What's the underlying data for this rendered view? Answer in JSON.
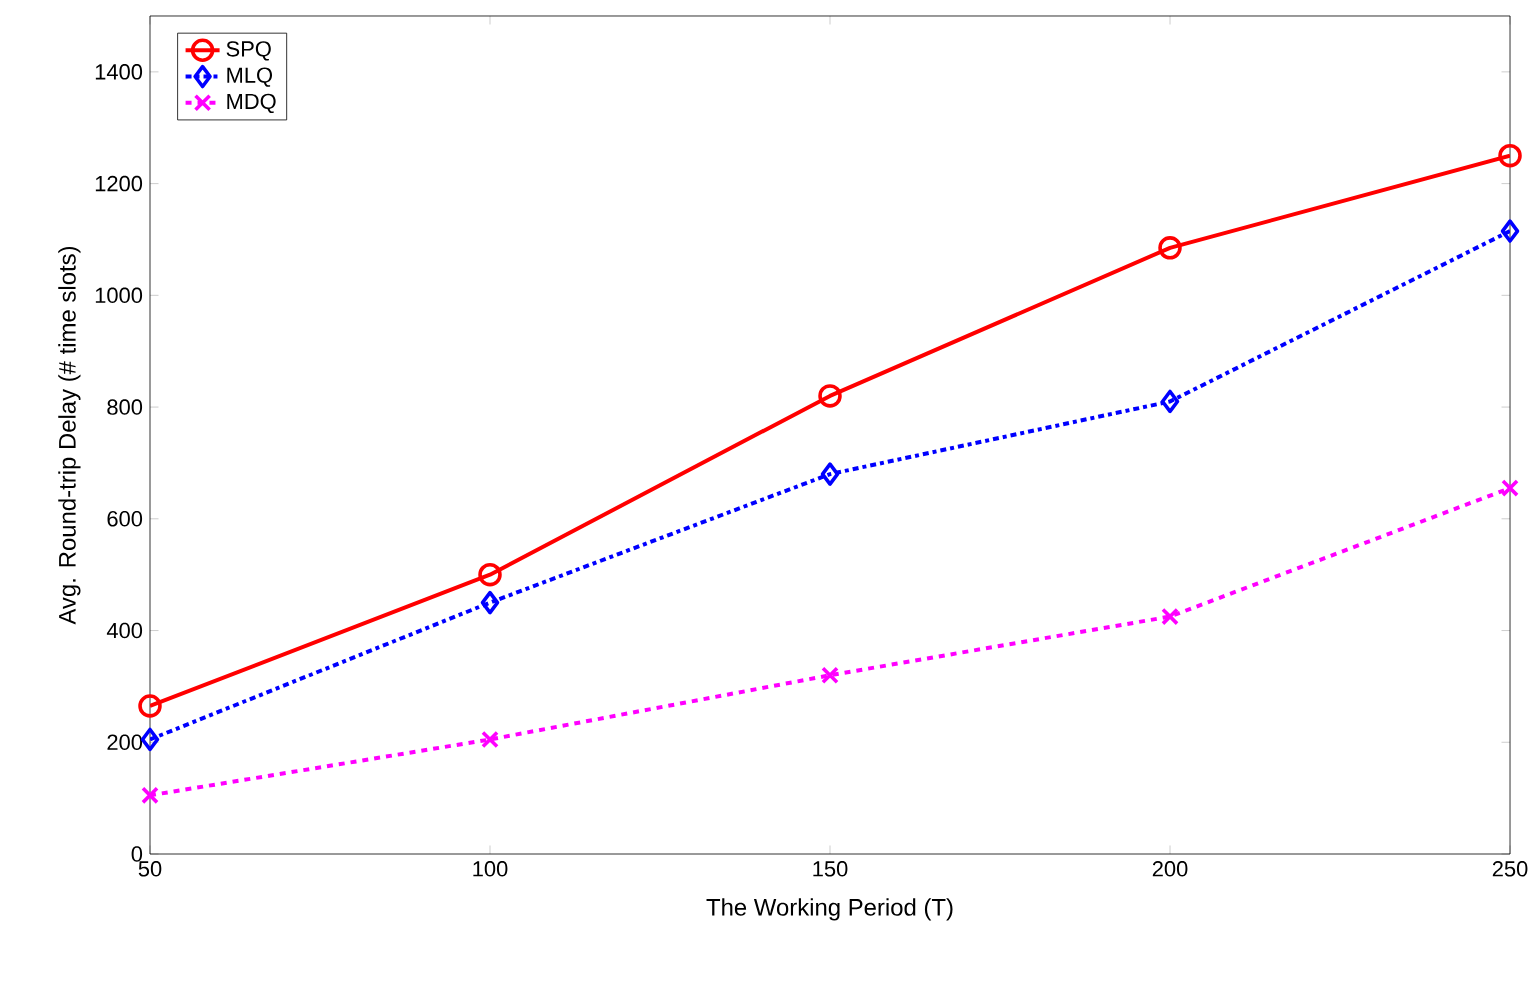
{
  "chart_data": {
    "type": "line",
    "xlabel": "The Working Period (T)",
    "ylabel": "Avg. Round-trip Delay (# time slots)",
    "x": [
      50,
      100,
      150,
      200,
      250
    ],
    "series": [
      {
        "name": "SPQ",
        "color": "#ff0000",
        "marker": "circle",
        "line_style": "solid",
        "values": [
          265,
          500,
          820,
          1085,
          1250
        ]
      },
      {
        "name": "MLQ",
        "color": "#0000ff",
        "marker": "diamond",
        "line_style": "dashdot",
        "values": [
          205,
          450,
          680,
          810,
          1115
        ]
      },
      {
        "name": "MDQ",
        "color": "#ff00ff",
        "marker": "cross",
        "line_style": "dashed",
        "values": [
          105,
          205,
          320,
          425,
          655
        ]
      }
    ],
    "xlim": [
      50,
      250
    ],
    "ylim": [
      0,
      1500
    ],
    "xticks": [
      50,
      100,
      150,
      200,
      250
    ],
    "yticks": [
      0,
      200,
      400,
      600,
      800,
      1000,
      1200,
      1400
    ],
    "grid": false,
    "legend": "top left"
  }
}
